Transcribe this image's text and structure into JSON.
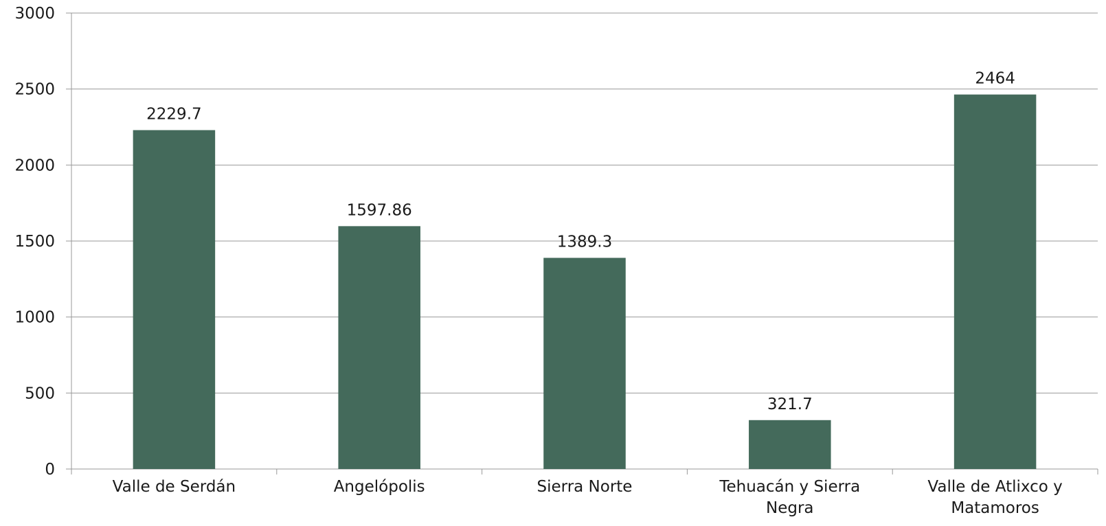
{
  "chart_data": {
    "type": "bar",
    "categories": [
      "Valle de Serdán",
      "Angelópolis",
      "Sierra Norte",
      "Tehuacán y Sierra Negra",
      "Valle de Atlixco y Matamoros"
    ],
    "values": [
      2229.7,
      1597.86,
      1389.3,
      321.7,
      2464
    ],
    "color": "#446a5b",
    "ylim": [
      0,
      3000
    ],
    "yticks": [
      0,
      500,
      1000,
      1500,
      2000,
      2500,
      3000
    ],
    "grid": true
  }
}
